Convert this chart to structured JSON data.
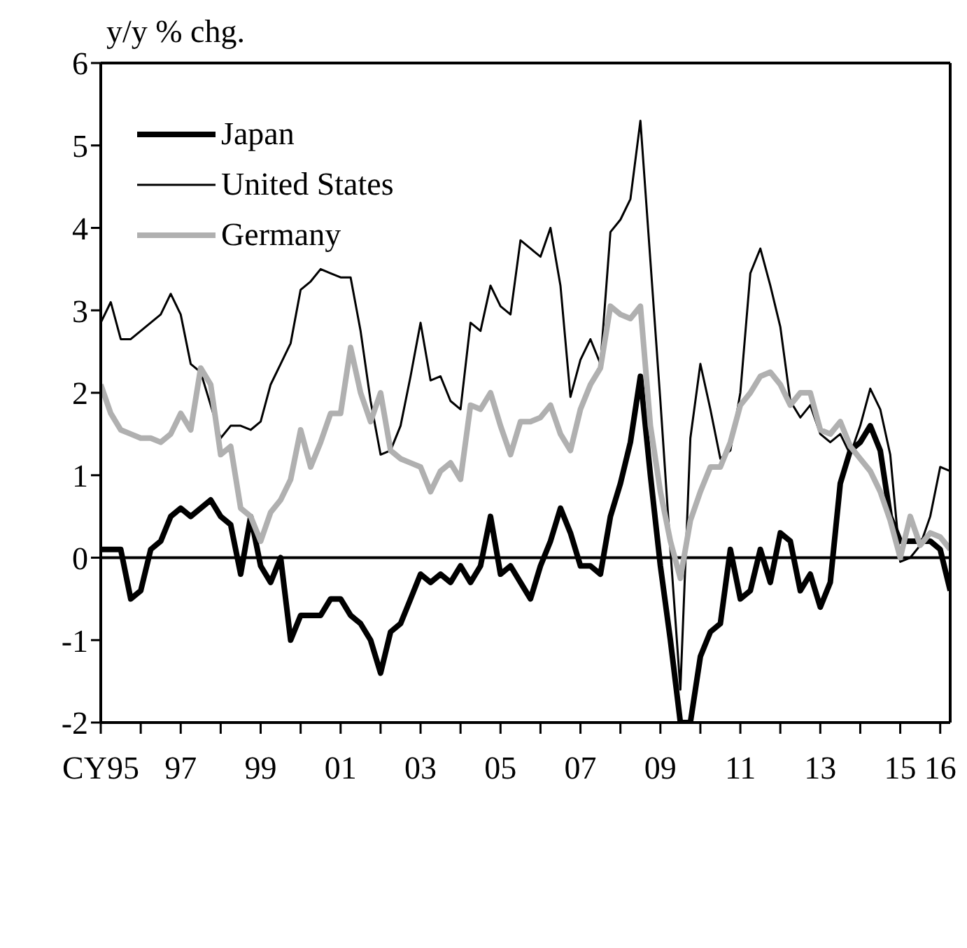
{
  "chart_data": {
    "type": "line",
    "ylabel": "y/y % chg.",
    "x": [
      1995,
      1995.25,
      1995.5,
      1995.75,
      1996,
      1996.25,
      1996.5,
      1996.75,
      1997,
      1997.25,
      1997.5,
      1997.75,
      1998,
      1998.25,
      1998.5,
      1998.75,
      1999,
      1999.25,
      1999.5,
      1999.75,
      2000,
      2000.25,
      2000.5,
      2000.75,
      2001,
      2001.25,
      2001.5,
      2001.75,
      2002,
      2002.25,
      2002.5,
      2002.75,
      2003,
      2003.25,
      2003.5,
      2003.75,
      2004,
      2004.25,
      2004.5,
      2004.75,
      2005,
      2005.25,
      2005.5,
      2005.75,
      2006,
      2006.25,
      2006.5,
      2006.75,
      2007,
      2007.25,
      2007.5,
      2007.75,
      2008,
      2008.25,
      2008.5,
      2008.75,
      2009,
      2009.25,
      2009.5,
      2009.75,
      2010,
      2010.25,
      2010.5,
      2010.75,
      2011,
      2011.25,
      2011.5,
      2011.75,
      2012,
      2012.25,
      2012.5,
      2012.75,
      2013,
      2013.25,
      2013.5,
      2013.75,
      2014,
      2014.25,
      2014.5,
      2014.75,
      2015,
      2015.25,
      2015.5,
      2015.75,
      2016,
      2016.25
    ],
    "series": [
      {
        "name": "Japan",
        "color": "#000000",
        "values": [
          0.1,
          0.1,
          0.1,
          -0.5,
          -0.4,
          0.1,
          0.2,
          0.5,
          0.6,
          0.5,
          0.6,
          0.7,
          0.5,
          0.4,
          -0.2,
          0.5,
          -0.1,
          -0.3,
          0,
          -1.0,
          -0.7,
          -0.7,
          -0.7,
          -0.5,
          -0.5,
          -0.7,
          -0.8,
          -1.0,
          -1.4,
          -0.9,
          -0.8,
          -0.5,
          -0.2,
          -0.3,
          -0.2,
          -0.3,
          -0.1,
          -0.3,
          -0.1,
          0.5,
          -0.2,
          -0.1,
          -0.3,
          -0.5,
          -0.1,
          0.2,
          0.6,
          0.3,
          -0.1,
          -0.1,
          -0.2,
          0.5,
          0.9,
          1.4,
          2.2,
          1.0,
          -0.1,
          -1.0,
          -2,
          -2,
          -1.2,
          -0.9,
          -0.8,
          0.1,
          -0.5,
          -0.4,
          0.1,
          -0.3,
          0.3,
          0.2,
          -0.4,
          -0.2,
          -0.6,
          -0.3,
          0.9,
          1.3,
          1.4,
          1.6,
          1.3,
          0.5,
          0.2,
          0.2,
          0.2,
          0.2,
          0.1,
          -0.4
        ]
      },
      {
        "name": "United States",
        "color": "#000000",
        "values": [
          2.85,
          3.1,
          2.65,
          2.65,
          2.75,
          2.85,
          2.95,
          3.2,
          2.95,
          2.35,
          2.25,
          1.85,
          1.45,
          1.6,
          1.6,
          1.55,
          1.65,
          2.1,
          2.35,
          2.6,
          3.25,
          3.35,
          3.5,
          3.45,
          3.4,
          3.4,
          2.75,
          1.9,
          1.25,
          1.3,
          1.6,
          2.2,
          2.85,
          2.15,
          2.2,
          1.9,
          1.8,
          2.85,
          2.75,
          3.3,
          3.05,
          2.95,
          3.85,
          3.75,
          3.65,
          4.0,
          3.3,
          1.95,
          2.4,
          2.65,
          2.35,
          3.95,
          4.1,
          4.35,
          5.3,
          3.6,
          1.9,
          0.1,
          -1.6,
          1.45,
          2.35,
          1.8,
          1.2,
          1.3,
          2.0,
          3.45,
          3.75,
          3.3,
          2.8,
          1.9,
          1.7,
          1.85,
          1.5,
          1.4,
          1.5,
          1.25,
          1.6,
          2.05,
          1.8,
          1.25,
          -0.05,
          0.0,
          0.15,
          0.5,
          1.1,
          1.05
        ]
      },
      {
        "name": "Germany",
        "color": "#b0b0b0",
        "values": [
          2.1,
          1.75,
          1.55,
          1.5,
          1.45,
          1.45,
          1.4,
          1.5,
          1.75,
          1.55,
          2.3,
          2.1,
          1.25,
          1.35,
          0.6,
          0.5,
          0.2,
          0.55,
          0.7,
          0.95,
          1.55,
          1.1,
          1.4,
          1.75,
          1.75,
          2.55,
          2.0,
          1.65,
          2.0,
          1.3,
          1.2,
          1.15,
          1.1,
          0.8,
          1.05,
          1.15,
          0.95,
          1.85,
          1.8,
          2.0,
          1.6,
          1.25,
          1.65,
          1.65,
          1.7,
          1.85,
          1.5,
          1.3,
          1.8,
          2.1,
          2.3,
          3.05,
          2.95,
          2.9,
          3.05,
          1.6,
          0.8,
          0.2,
          -0.25,
          0.45,
          0.8,
          1.1,
          1.1,
          1.4,
          1.85,
          2.0,
          2.2,
          2.25,
          2.1,
          1.85,
          2.0,
          2.0,
          1.55,
          1.5,
          1.65,
          1.35,
          1.2,
          1.05,
          0.8,
          0.45,
          0.0,
          0.5,
          0.15,
          0.3,
          0.25,
          0.1
        ]
      }
    ],
    "xlim": [
      1995,
      2016.25
    ],
    "xticks": [
      {
        "value": 1995,
        "label": "CY95"
      },
      {
        "value": 1996,
        "label": null
      },
      {
        "value": 1997,
        "label": "97"
      },
      {
        "value": 1998,
        "label": null
      },
      {
        "value": 1999,
        "label": "99"
      },
      {
        "value": 2000,
        "label": null
      },
      {
        "value": 2001,
        "label": "01"
      },
      {
        "value": 2002,
        "label": null
      },
      {
        "value": 2003,
        "label": "03"
      },
      {
        "value": 2004,
        "label": null
      },
      {
        "value": 2005,
        "label": "05"
      },
      {
        "value": 2006,
        "label": null
      },
      {
        "value": 2007,
        "label": "07"
      },
      {
        "value": 2008,
        "label": null
      },
      {
        "value": 2009,
        "label": "09"
      },
      {
        "value": 2010,
        "label": null
      },
      {
        "value": 2011,
        "label": "11"
      },
      {
        "value": 2012,
        "label": null
      },
      {
        "value": 2013,
        "label": "13"
      },
      {
        "value": 2014,
        "label": null
      },
      {
        "value": 2015,
        "label": "15"
      },
      {
        "value": 2016,
        "label": "16"
      }
    ],
    "ylim": [
      -2,
      6
    ],
    "yticks": [
      -2,
      -1,
      0,
      1,
      2,
      3,
      4,
      5,
      6
    ],
    "ref_lines": [
      {
        "axis": "y",
        "value": 0,
        "color": "#000000"
      }
    ],
    "legend": "top left",
    "marker": "none",
    "line_style": "solid",
    "grid": false
  }
}
